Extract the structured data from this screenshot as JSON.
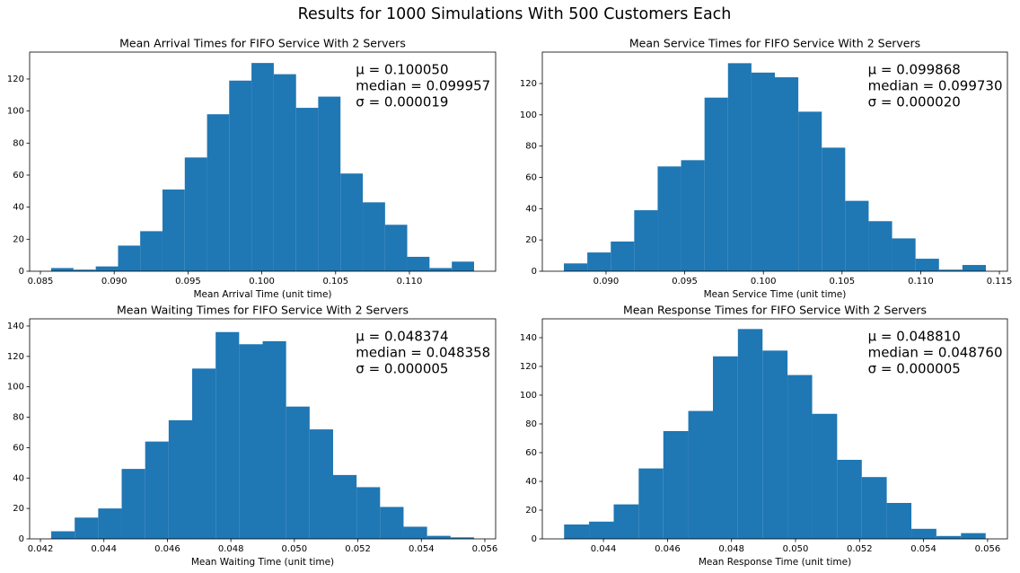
{
  "title": "Results for 1000 Simulations With 500 Customers Each",
  "chart_data": [
    {
      "type": "histogram",
      "title": "Mean Arrival Times for FIFO Service With 2 Servers",
      "xlabel": "Mean Arrival Time (unit time)",
      "color": "#1f77b4",
      "bins": [
        0.08573,
        0.08724,
        0.08875,
        0.09026,
        0.09176,
        0.09327,
        0.09478,
        0.09629,
        0.09779,
        0.0993,
        0.10081,
        0.10232,
        0.10382,
        0.10533,
        0.10684,
        0.10835,
        0.10985,
        0.11136,
        0.11287,
        0.11438
      ],
      "counts": [
        2,
        1,
        3,
        16,
        25,
        51,
        71,
        98,
        119,
        130,
        123,
        102,
        109,
        61,
        43,
        29,
        9,
        2,
        6
      ],
      "xlim": [
        0.08427,
        0.11584
      ],
      "ylim": [
        0,
        136.8
      ],
      "xticks": [
        {
          "value": 0.085,
          "label": "0.085"
        },
        {
          "value": 0.09,
          "label": "0.090"
        },
        {
          "value": 0.095,
          "label": "0.095"
        },
        {
          "value": 0.1,
          "label": "0.100"
        },
        {
          "value": 0.105,
          "label": "0.105"
        },
        {
          "value": 0.11,
          "label": "0.110"
        }
      ],
      "yticks": [
        0,
        20,
        40,
        60,
        80,
        100,
        120
      ],
      "annotations": [
        "μ = 0.100050",
        "median = 0.099957",
        "σ = 0.000019"
      ]
    },
    {
      "type": "histogram",
      "title": "Mean Service Times for FIFO Service With 2 Servers",
      "xlabel": "Mean Service Time (unit time)",
      "color": "#1f77b4",
      "bins": [
        0.08732,
        0.08881,
        0.0903,
        0.09179,
        0.09328,
        0.09477,
        0.09626,
        0.09775,
        0.09924,
        0.10073,
        0.10222,
        0.10371,
        0.1052,
        0.10669,
        0.10818,
        0.10967,
        0.11116,
        0.11265,
        0.11414
      ],
      "counts": [
        5,
        12,
        19,
        39,
        67,
        71,
        111,
        133,
        127,
        124,
        102,
        79,
        45,
        32,
        21,
        8,
        1,
        4
      ],
      "xlim": [
        0.08595,
        0.11551
      ],
      "ylim": [
        0,
        140.1
      ],
      "xticks": [
        {
          "value": 0.09,
          "label": "0.090"
        },
        {
          "value": 0.095,
          "label": "0.095"
        },
        {
          "value": 0.1,
          "label": "0.100"
        },
        {
          "value": 0.105,
          "label": "0.105"
        },
        {
          "value": 0.11,
          "label": "0.110"
        },
        {
          "value": 0.115,
          "label": "0.115"
        }
      ],
      "yticks": [
        0,
        20,
        40,
        60,
        80,
        100,
        120
      ],
      "annotations": [
        "μ = 0.099868",
        "median = 0.099730",
        "σ = 0.000020"
      ]
    },
    {
      "type": "histogram",
      "title": "Mean Waiting Times for FIFO Service With 2 Servers",
      "xlabel": "Mean Waiting Time (unit time)",
      "color": "#1f77b4",
      "bins": [
        0.04234,
        0.04308,
        0.04382,
        0.04456,
        0.0453,
        0.04604,
        0.04678,
        0.04752,
        0.04826,
        0.049,
        0.04974,
        0.05048,
        0.05122,
        0.05196,
        0.0527,
        0.05344,
        0.05418,
        0.05492,
        0.05566
      ],
      "counts": [
        5,
        14,
        20,
        46,
        64,
        78,
        112,
        136,
        128,
        130,
        87,
        72,
        42,
        34,
        21,
        8,
        2,
        1
      ],
      "xlim": [
        0.04166,
        0.05634
      ],
      "ylim": [
        0,
        144.7
      ],
      "xticks": [
        {
          "value": 0.042,
          "label": "0.042"
        },
        {
          "value": 0.044,
          "label": "0.044"
        },
        {
          "value": 0.046,
          "label": "0.046"
        },
        {
          "value": 0.048,
          "label": "0.048"
        },
        {
          "value": 0.05,
          "label": "0.050"
        },
        {
          "value": 0.052,
          "label": "0.052"
        },
        {
          "value": 0.054,
          "label": "0.054"
        },
        {
          "value": 0.056,
          "label": "0.056"
        }
      ],
      "yticks": [
        0,
        20,
        40,
        60,
        80,
        100,
        120,
        140
      ],
      "annotations": [
        "μ = 0.048374",
        "median = 0.048358",
        "σ = 0.000005"
      ]
    },
    {
      "type": "histogram",
      "title": "Mean Response Times for FIFO Service With 2 Servers",
      "xlabel": "Mean Response Time (unit time)",
      "color": "#1f77b4",
      "bins": [
        0.04277,
        0.04355,
        0.04432,
        0.0451,
        0.04587,
        0.04665,
        0.04742,
        0.0482,
        0.04897,
        0.04975,
        0.05052,
        0.0513,
        0.05207,
        0.05285,
        0.05362,
        0.0544,
        0.05517,
        0.05594
      ],
      "counts": [
        10,
        12,
        24,
        49,
        75,
        89,
        127,
        146,
        131,
        114,
        87,
        55,
        43,
        25,
        7,
        2,
        4
      ],
      "xlim": [
        0.04209,
        0.05662
      ],
      "ylim": [
        0,
        153.1
      ],
      "xticks": [
        {
          "value": 0.044,
          "label": "0.044"
        },
        {
          "value": 0.046,
          "label": "0.046"
        },
        {
          "value": 0.048,
          "label": "0.048"
        },
        {
          "value": 0.05,
          "label": "0.050"
        },
        {
          "value": 0.052,
          "label": "0.052"
        },
        {
          "value": 0.054,
          "label": "0.054"
        },
        {
          "value": 0.056,
          "label": "0.056"
        }
      ],
      "yticks": [
        0,
        20,
        40,
        60,
        80,
        100,
        120,
        140
      ],
      "annotations": [
        "μ = 0.048810",
        "median = 0.048760",
        "σ = 0.000005"
      ]
    }
  ]
}
